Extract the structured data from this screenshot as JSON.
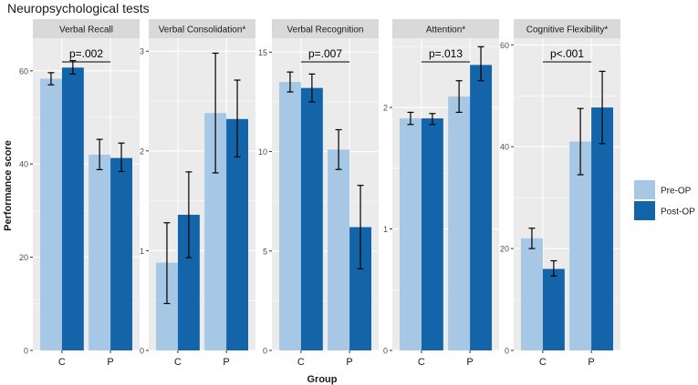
{
  "chart_data": {
    "type": "bar",
    "title": "Neuropsychological tests",
    "xlabel": "Group",
    "ylabel": "Performance score",
    "legend": {
      "position": "right",
      "items": [
        {
          "name": "Pre-OP",
          "color": "#a6c8e4"
        },
        {
          "name": "Post-OP",
          "color": "#1464aa"
        }
      ]
    },
    "colors": {
      "panel_bg": "#ebebeb",
      "strip_bg": "#d9d9d9",
      "grid": "#ffffff",
      "pre_op": "#a6c8e4",
      "post_op": "#1464aa"
    },
    "panels": [
      {
        "name": "Verbal Recall",
        "ylim": [
          0,
          67
        ],
        "yticks": [
          0,
          20,
          40,
          60
        ],
        "categories": [
          "C",
          "P"
        ],
        "series": [
          {
            "name": "Pre-OP",
            "values": [
              58.3,
              42.0
            ],
            "err_low": [
              57.0,
              38.8
            ],
            "err_high": [
              59.6,
              45.3
            ]
          },
          {
            "name": "Post-OP",
            "values": [
              60.7,
              41.3
            ],
            "err_low": [
              59.3,
              38.4
            ],
            "err_high": [
              62.2,
              44.5
            ]
          }
        ],
        "annotation": "p=.002"
      },
      {
        "name": "Verbal Consolidation*",
        "ylim": [
          0,
          3.13
        ],
        "yticks": [
          0,
          1,
          2,
          3
        ],
        "categories": [
          "C",
          "P"
        ],
        "series": [
          {
            "name": "Pre-OP",
            "values": [
              0.88,
              2.38
            ],
            "err_low": [
              0.47,
              1.78
            ],
            "err_high": [
              1.28,
              2.98
            ]
          },
          {
            "name": "Post-OP",
            "values": [
              1.36,
              2.32
            ],
            "err_low": [
              0.93,
              1.94
            ],
            "err_high": [
              1.79,
              2.71
            ]
          }
        ],
        "annotation": ""
      },
      {
        "name": "Verbal Recognition",
        "ylim": [
          0,
          15.7
        ],
        "yticks": [
          0,
          5,
          10,
          15
        ],
        "categories": [
          "C",
          "P"
        ],
        "series": [
          {
            "name": "Pre-OP",
            "values": [
              13.5,
              10.1
            ],
            "err_low": [
              13.0,
              9.1
            ],
            "err_high": [
              14.0,
              11.1
            ]
          },
          {
            "name": "Post-OP",
            "values": [
              13.2,
              6.2
            ],
            "err_low": [
              12.5,
              4.1
            ],
            "err_high": [
              13.9,
              8.3
            ]
          }
        ],
        "annotation": "p=.007"
      },
      {
        "name": "Attention*",
        "ylim": [
          0,
          2.57
        ],
        "yticks": [
          0,
          1,
          2
        ],
        "categories": [
          "C",
          "P"
        ],
        "series": [
          {
            "name": "Pre-OP",
            "values": [
              1.91,
              2.09
            ],
            "err_low": [
              1.86,
              1.96
            ],
            "err_high": [
              1.96,
              2.22
            ]
          },
          {
            "name": "Post-OP",
            "values": [
              1.91,
              2.35
            ],
            "err_low": [
              1.86,
              2.22
            ],
            "err_high": [
              1.95,
              2.5
            ]
          }
        ],
        "annotation": "p=.013"
      },
      {
        "name": "Cognitive Flexibility*",
        "ylim": [
          0,
          61.3
        ],
        "yticks": [
          0,
          20,
          40,
          60
        ],
        "categories": [
          "C",
          "P"
        ],
        "series": [
          {
            "name": "Pre-OP",
            "values": [
              22.0,
              41.0
            ],
            "err_low": [
              20.0,
              34.5
            ],
            "err_high": [
              24.0,
              47.5
            ]
          },
          {
            "name": "Post-OP",
            "values": [
              16.0,
              47.7
            ],
            "err_low": [
              14.6,
              40.6
            ],
            "err_high": [
              17.6,
              54.8
            ]
          }
        ],
        "annotation": "p<.001"
      }
    ]
  }
}
